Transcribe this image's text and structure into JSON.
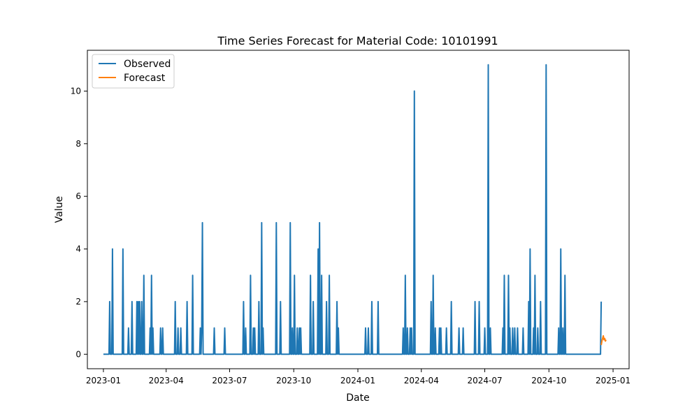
{
  "chart_data": {
    "type": "line",
    "title": "Time Series Forecast for Material Code: 10101991",
    "xlabel": "Date",
    "ylabel": "Value",
    "x_axis_type": "date",
    "xlim": [
      "2022-12-09",
      "2025-01-24"
    ],
    "ylim": [
      -0.55,
      11.55
    ],
    "x_ticks": [
      "2023-01-01",
      "2023-04-01",
      "2023-07-01",
      "2023-10-01",
      "2024-01-01",
      "2024-04-01",
      "2024-07-01",
      "2024-10-01",
      "2025-01-01"
    ],
    "x_tick_labels": [
      "2023-01",
      "2023-04",
      "2023-07",
      "2023-10",
      "2024-01",
      "2024-04",
      "2024-07",
      "2024-10",
      "2025-01"
    ],
    "y_ticks": [
      0,
      2,
      4,
      6,
      8,
      10
    ],
    "y_tick_labels": [
      "0",
      "2",
      "4",
      "6",
      "8",
      "10"
    ],
    "grid": false,
    "legend_position": "upper-left",
    "legend": [
      {
        "label": "Observed",
        "color": "#1f77b4"
      },
      {
        "label": "Forecast",
        "color": "#ff7f0e"
      }
    ],
    "series": [
      {
        "name": "Observed",
        "color": "#1f77b4",
        "baseline": 0,
        "start": "2023-01-01",
        "end": "2024-12-15",
        "spikes": [
          [
            "2023-01-10",
            2
          ],
          [
            "2023-01-14",
            4
          ],
          [
            "2023-01-29",
            4
          ],
          [
            "2023-02-06",
            1
          ],
          [
            "2023-02-11",
            2
          ],
          [
            "2023-02-18",
            2
          ],
          [
            "2023-02-20",
            2
          ],
          [
            "2023-02-22",
            2
          ],
          [
            "2023-02-25",
            2
          ],
          [
            "2023-02-28",
            3
          ],
          [
            "2023-03-09",
            1
          ],
          [
            "2023-03-11",
            3
          ],
          [
            "2023-03-13",
            1
          ],
          [
            "2023-03-24",
            1
          ],
          [
            "2023-03-27",
            1
          ],
          [
            "2023-04-14",
            2
          ],
          [
            "2023-04-18",
            1
          ],
          [
            "2023-04-22",
            1
          ],
          [
            "2023-05-01",
            2
          ],
          [
            "2023-05-09",
            3
          ],
          [
            "2023-05-20",
            1
          ],
          [
            "2023-05-22",
            1
          ],
          [
            "2023-05-23",
            5
          ],
          [
            "2023-06-09",
            1
          ],
          [
            "2023-06-24",
            1
          ],
          [
            "2023-07-21",
            2
          ],
          [
            "2023-07-24",
            1
          ],
          [
            "2023-07-31",
            3
          ],
          [
            "2023-08-04",
            1
          ],
          [
            "2023-08-06",
            1
          ],
          [
            "2023-08-12",
            2
          ],
          [
            "2023-08-16",
            5
          ],
          [
            "2023-08-18",
            1
          ],
          [
            "2023-09-06",
            5
          ],
          [
            "2023-09-12",
            2
          ],
          [
            "2023-09-26",
            5
          ],
          [
            "2023-09-29",
            1
          ],
          [
            "2023-10-02",
            3
          ],
          [
            "2023-10-06",
            1
          ],
          [
            "2023-10-09",
            1
          ],
          [
            "2023-10-11",
            1
          ],
          [
            "2023-10-25",
            3
          ],
          [
            "2023-10-29",
            2
          ],
          [
            "2023-11-05",
            4
          ],
          [
            "2023-11-07",
            5
          ],
          [
            "2023-11-10",
            3
          ],
          [
            "2023-11-17",
            2
          ],
          [
            "2023-11-21",
            3
          ],
          [
            "2023-12-02",
            2
          ],
          [
            "2023-12-04",
            1
          ],
          [
            "2024-01-12",
            1
          ],
          [
            "2024-01-16",
            1
          ],
          [
            "2024-01-21",
            2
          ],
          [
            "2024-01-30",
            2
          ],
          [
            "2024-03-06",
            1
          ],
          [
            "2024-03-09",
            3
          ],
          [
            "2024-03-12",
            1
          ],
          [
            "2024-03-16",
            1
          ],
          [
            "2024-03-18",
            1
          ],
          [
            "2024-03-22",
            10
          ],
          [
            "2024-04-15",
            2
          ],
          [
            "2024-04-18",
            3
          ],
          [
            "2024-04-21",
            1
          ],
          [
            "2024-04-27",
            1
          ],
          [
            "2024-04-29",
            1
          ],
          [
            "2024-05-07",
            1
          ],
          [
            "2024-05-14",
            2
          ],
          [
            "2024-05-25",
            1
          ],
          [
            "2024-05-31",
            1
          ],
          [
            "2024-06-17",
            2
          ],
          [
            "2024-06-23",
            2
          ],
          [
            "2024-07-01",
            1
          ],
          [
            "2024-07-06",
            11
          ],
          [
            "2024-07-09",
            1
          ],
          [
            "2024-07-27",
            1
          ],
          [
            "2024-07-29",
            3
          ],
          [
            "2024-08-04",
            3
          ],
          [
            "2024-08-06",
            1
          ],
          [
            "2024-08-10",
            1
          ],
          [
            "2024-08-13",
            1
          ],
          [
            "2024-08-17",
            1
          ],
          [
            "2024-08-25",
            1
          ],
          [
            "2024-09-02",
            2
          ],
          [
            "2024-09-04",
            4
          ],
          [
            "2024-09-09",
            1
          ],
          [
            "2024-09-11",
            3
          ],
          [
            "2024-09-15",
            1
          ],
          [
            "2024-09-19",
            2
          ],
          [
            "2024-09-27",
            11
          ],
          [
            "2024-10-15",
            1
          ],
          [
            "2024-10-18",
            4
          ],
          [
            "2024-10-21",
            1
          ],
          [
            "2024-10-24",
            3
          ],
          [
            "2024-12-15",
            2
          ]
        ]
      },
      {
        "name": "Forecast",
        "color": "#ff7f0e",
        "points": [
          [
            "2024-12-15",
            0.35
          ],
          [
            "2024-12-16",
            0.5
          ],
          [
            "2024-12-17",
            0.6
          ],
          [
            "2024-12-18",
            0.7
          ],
          [
            "2024-12-19",
            0.55
          ],
          [
            "2024-12-20",
            0.6
          ],
          [
            "2024-12-21",
            0.5
          ],
          [
            "2024-12-22",
            0.55
          ]
        ]
      }
    ]
  }
}
